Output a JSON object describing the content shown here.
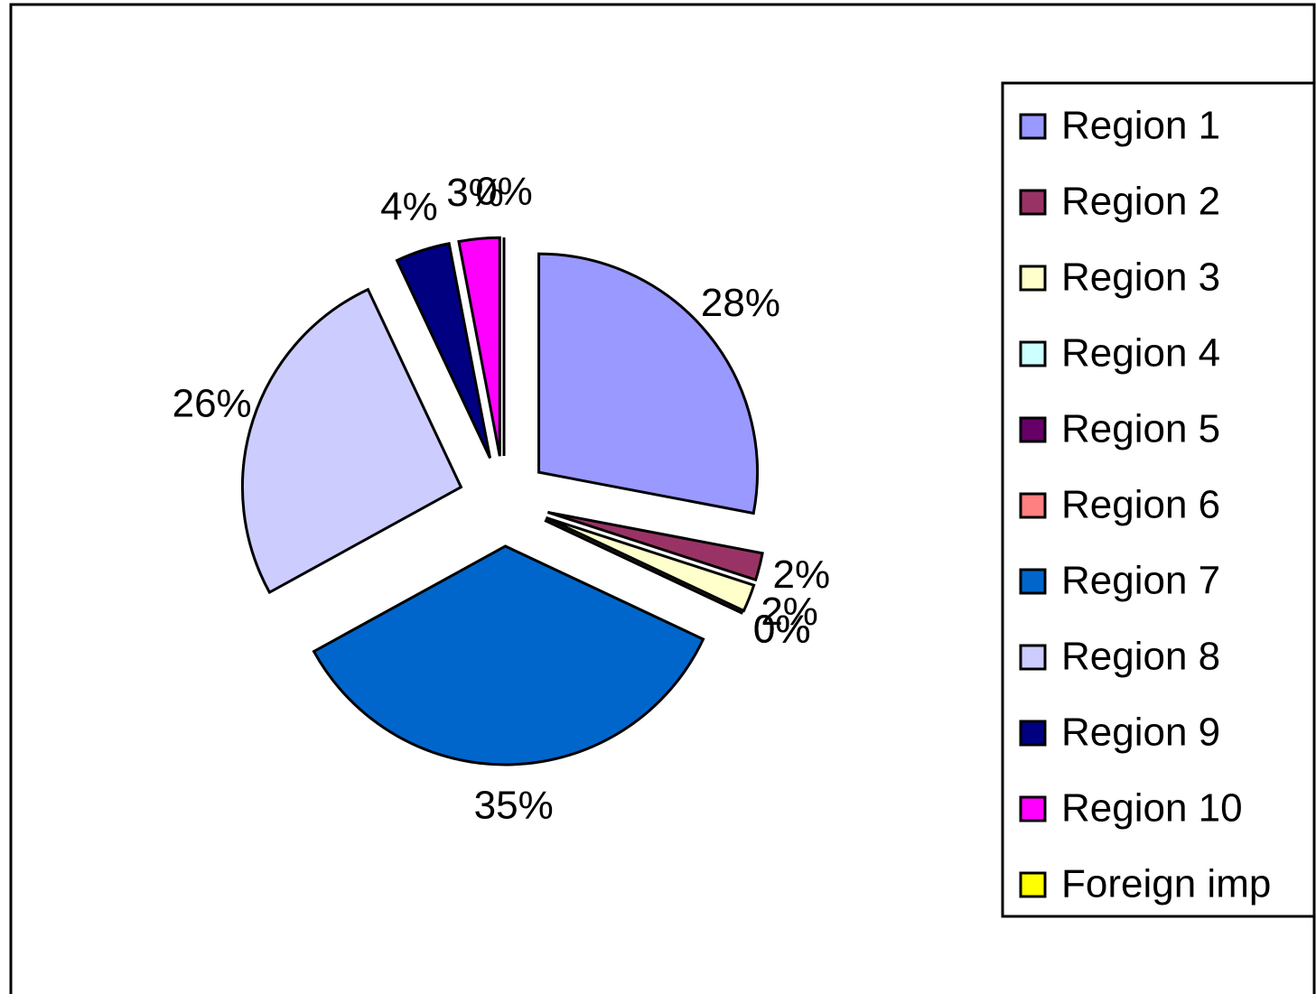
{
  "chart_data": {
    "type": "pie",
    "categories": [
      "Region 1",
      "Region 2",
      "Region 3",
      "Region 4",
      "Region 5",
      "Region 6",
      "Region 7",
      "Region 8",
      "Region 9",
      "Region 10",
      "Foreign imp"
    ],
    "values": [
      28,
      2,
      2,
      0,
      0,
      0,
      35,
      26,
      4,
      3,
      0
    ],
    "value_labels": [
      "28%",
      "2%",
      "2%",
      "0%",
      "0%",
      "0%",
      "35%",
      "26%",
      "4%",
      "3%",
      "0%"
    ],
    "colors": [
      "#9999ff",
      "#993366",
      "#ffffcc",
      "#ccffff",
      "#660066",
      "#ff8080",
      "#0066cc",
      "#ccccff",
      "#000080",
      "#ff00ff",
      "#ffff00"
    ],
    "legend": "right"
  }
}
